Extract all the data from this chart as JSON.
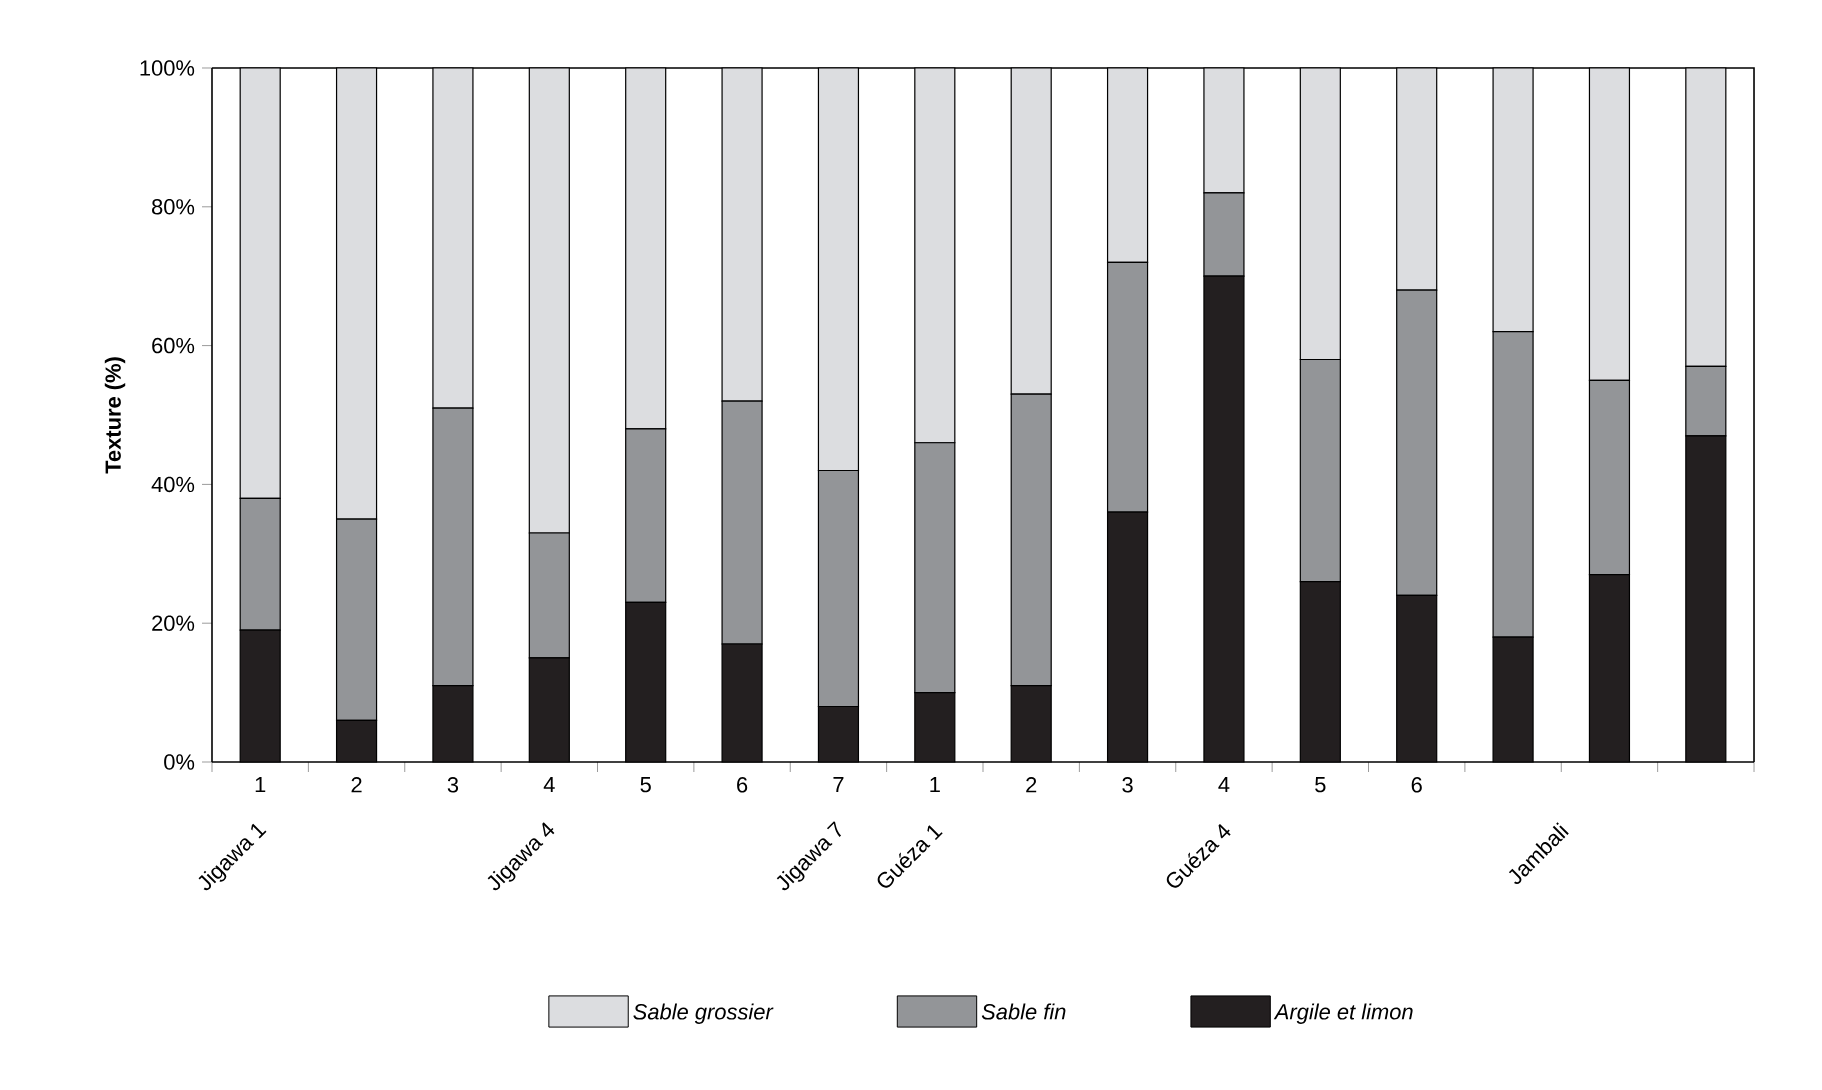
{
  "chart_data": {
    "type": "bar",
    "stacked": true,
    "ylabel": "Texture (%)",
    "categories": [
      "1",
      "2",
      "3",
      "4",
      "5",
      "6",
      "7",
      "1",
      "2",
      "3",
      "4",
      "5",
      "6",
      null,
      null,
      null
    ],
    "series": [
      {
        "name": "Argile et limon",
        "color": "#231f20",
        "values": [
          19,
          6,
          11,
          15,
          23,
          17,
          8,
          10,
          11,
          36,
          70,
          26,
          24,
          18,
          27,
          47
        ]
      },
      {
        "name": "Sable fin",
        "color": "#939598",
        "values": [
          19,
          29,
          40,
          18,
          25,
          35,
          34,
          36,
          42,
          36,
          12,
          32,
          44,
          44,
          28,
          10
        ]
      },
      {
        "name": "Sable grossier",
        "color": "#dcdde0",
        "values": [
          62,
          65,
          49,
          67,
          52,
          48,
          58,
          54,
          47,
          28,
          18,
          42,
          32,
          38,
          45,
          43
        ]
      }
    ],
    "ylim": [
      0,
      100
    ],
    "yticks": [
      {
        "value": 0,
        "label": "0%"
      },
      {
        "value": 20,
        "label": "20%"
      },
      {
        "value": 40,
        "label": "40%"
      },
      {
        "value": 60,
        "label": "60%"
      },
      {
        "value": 80,
        "label": "80%"
      },
      {
        "value": 100,
        "label": "100%"
      }
    ],
    "annotations": [
      "Jigawa 1",
      "Jigawa 4",
      "Jigawa 7",
      "Guéza 1",
      "Guéza 4",
      "Jambali"
    ],
    "legend": "bottom",
    "grid": false
  }
}
